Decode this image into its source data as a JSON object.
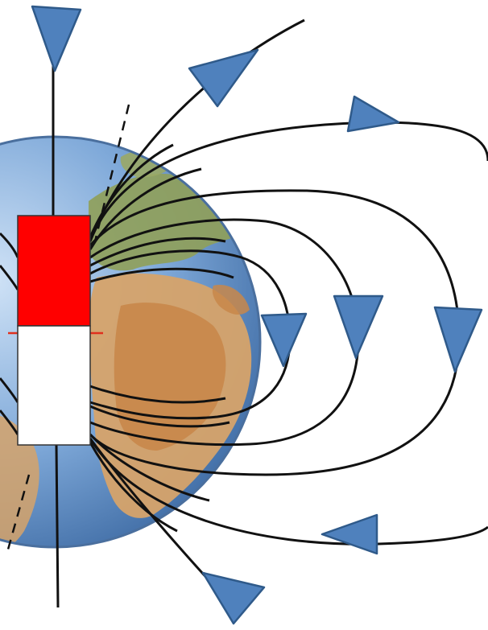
{
  "diagram": {
    "colors": {
      "background": "#ffffff",
      "ocean": "#7fa9d9",
      "ocean_dark": "#4f7fb8",
      "land_green": "#8f9f5b",
      "land_tan": "#d6a36a",
      "land_orange": "#c8874a",
      "field_line": "#111111",
      "arrow_fill": "#4f81bd",
      "arrow_stroke": "#2f5a8a",
      "magnet_north": "#ff0000",
      "magnet_south": "#ffffff",
      "magnet_outline": "#333333",
      "equator_mark": "#e0301e"
    },
    "icons": {
      "globe": "earth-globe",
      "magnet": "bar-magnet",
      "arrow": "triangle-arrow"
    }
  }
}
